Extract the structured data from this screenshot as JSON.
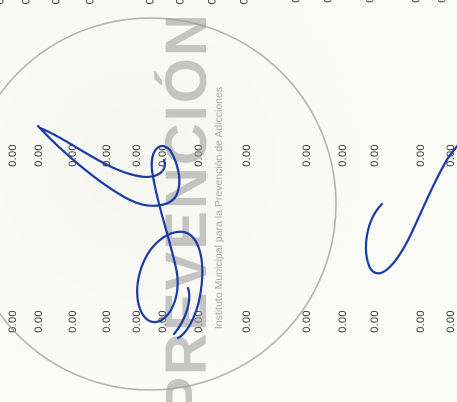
{
  "cells": {
    "v": "0.00"
  },
  "stamp": {
    "title": "PREVENCIÓN",
    "subtitle": "Instituto Municipal para la Prevención de Adicciones",
    "color": "#8a8a8a"
  },
  "signature": {
    "color": "#1a3aa8"
  }
}
